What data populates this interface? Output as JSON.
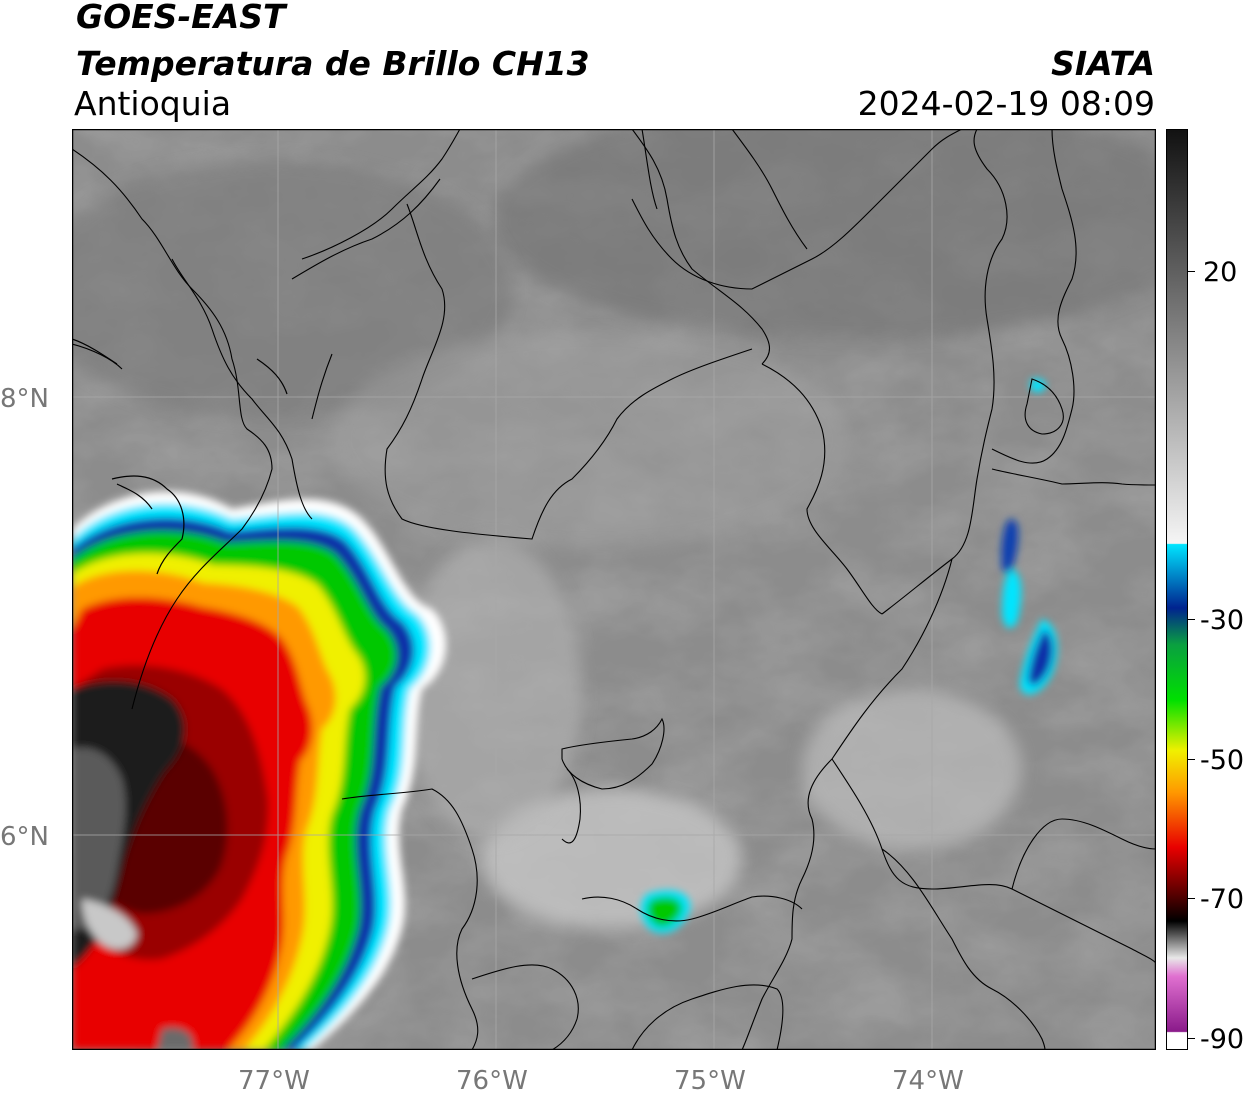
{
  "header": {
    "title_line1": "GOES-EAST",
    "title_line2": "Temperatura de Brillo CH13",
    "region": "Antioquia",
    "organization": "SIATA",
    "datetime": "2024-02-19 08:09"
  },
  "map": {
    "lat_labels": [
      "8°N",
      "6°N"
    ],
    "lon_labels": [
      "77°W",
      "76°W",
      "75°W",
      "74°W"
    ],
    "background_color": "#8c8c8c",
    "border_color": "#000000",
    "gridline_color": "#a8a8a8"
  },
  "colorbar": {
    "tick_labels": [
      "20",
      "-30",
      "-50",
      "-70",
      "-90"
    ],
    "colors": {
      "warm_gray_top": "#1a1a1a",
      "white": "#f5f5f5",
      "cyan": "#00e5ff",
      "dark_blue": "#00238f",
      "green": "#00c800",
      "yellow": "#f0f000",
      "orange": "#ff9900",
      "red": "#e80000",
      "dark_red": "#5a0000",
      "black": "#000000",
      "magenta": "#e070d0",
      "purple": "#8a1a8a"
    }
  }
}
